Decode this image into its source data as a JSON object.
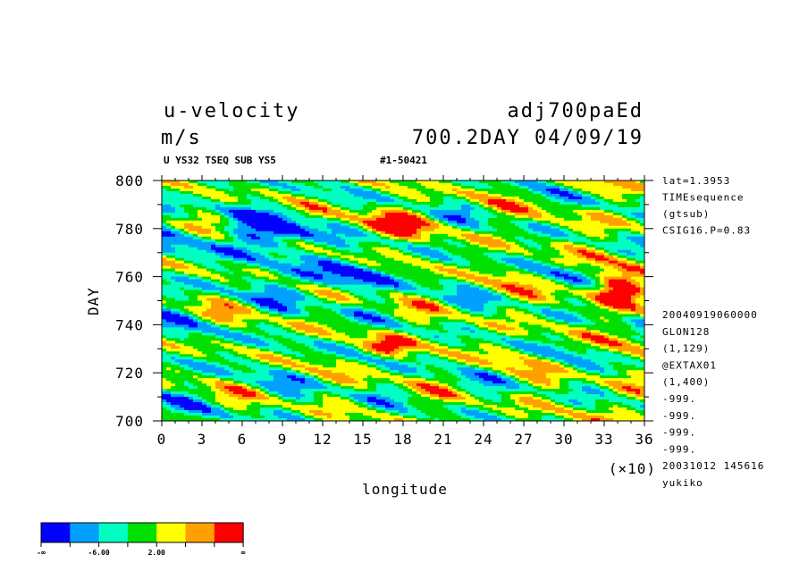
{
  "header": {
    "var_title": "u-velocity",
    "units": "m/s",
    "experiment": "adj700paEd",
    "time_info": "700.2DAY 04/09/19",
    "subline_left": "U YS32 TSEQ SUB YS5",
    "subline_right": "#1-50421"
  },
  "side_info_top": [
    "lat=1.3953",
    "TIMEsequence",
    "(gtsub)",
    "CSIG16.P=0.83"
  ],
  "side_info_bottom": [
    "20040919060000",
    "GLON128",
    "(1,129)",
    "@EXTAX01",
    "(1,400)",
    "-999.",
    "-999.",
    "-999.",
    "-999.",
    "20031012 145616",
    "yukiko"
  ],
  "colorbar": {
    "colors": [
      "#0000ff",
      "#00a0ff",
      "#00ffc0",
      "#00e000",
      "#ffff00",
      "#ffa000",
      "#ff0000"
    ],
    "labels": [
      "-∞",
      "-6.00",
      "2.00",
      "∞"
    ]
  },
  "chart_data": {
    "type": "heatmap",
    "title": "u-velocity",
    "xlabel": "longitude",
    "ylabel": "DAY",
    "x_scale_note": "(×10)",
    "xlim": [
      0,
      36
    ],
    "ylim": [
      700,
      800
    ],
    "x_ticks": [
      "0",
      "3",
      "6",
      "9",
      "12",
      "15",
      "18",
      "21",
      "24",
      "27",
      "30",
      "33",
      "36"
    ],
    "y_ticks": [
      "700",
      "720",
      "740",
      "760",
      "780",
      "800"
    ],
    "levels": [
      "-∞",
      "-6.00",
      "2.00",
      "∞"
    ],
    "colors": [
      "#0000ff",
      "#00a0ff",
      "#00ffc0",
      "#00e000",
      "#ffff00",
      "#ffa000",
      "#ff0000"
    ]
  }
}
